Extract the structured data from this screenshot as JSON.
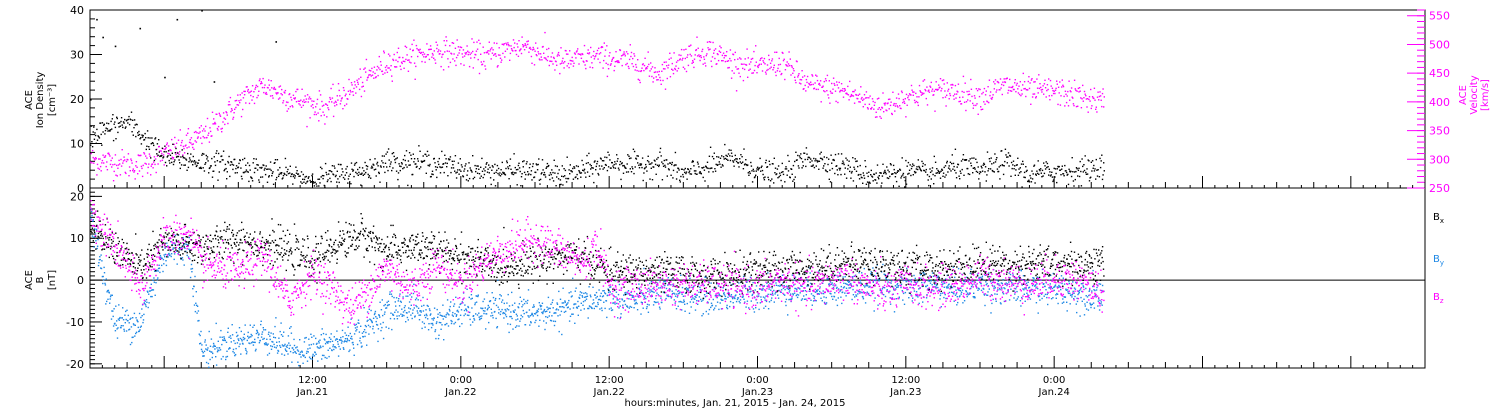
{
  "colors": {
    "black": "#000000",
    "magenta": "#ff00ff",
    "blue": "#1e88e5",
    "axis": "#000000"
  },
  "chart_data": [
    {
      "type": "scatter",
      "panel": "top",
      "ylabel_left": [
        "ACE",
        "Ion Density",
        "[cm⁻³]"
      ],
      "ylabel_right": [
        "ACE",
        "Velocity",
        "[km/s]"
      ],
      "ylim_left": [
        0,
        40
      ],
      "yticks_left": [
        "0",
        "10",
        "20",
        "30",
        "40"
      ],
      "ylim_right": [
        250,
        560
      ],
      "yticks_right": [
        "250",
        "300",
        "350",
        "400",
        "450",
        "500",
        "550"
      ],
      "x_range_hours": [
        -6,
        102
      ],
      "x_data_end_hours": 76,
      "series": [
        {
          "name": "ACE Ion Density",
          "axis": "left",
          "color": "black",
          "knots": [
            [
              -6,
              12
            ],
            [
              -3,
              15
            ],
            [
              0,
              7
            ],
            [
              3,
              6
            ],
            [
              6,
              5
            ],
            [
              10,
              3
            ],
            [
              12,
              2
            ],
            [
              14,
              3
            ],
            [
              16,
              4
            ],
            [
              18,
              6
            ],
            [
              21,
              6
            ],
            [
              25,
              4
            ],
            [
              30,
              4
            ],
            [
              32,
              3
            ],
            [
              34,
              4
            ],
            [
              36,
              6
            ],
            [
              38,
              5
            ],
            [
              40,
              6
            ],
            [
              42,
              3
            ],
            [
              44,
              5
            ],
            [
              46,
              7
            ],
            [
              48,
              4
            ],
            [
              50,
              3
            ],
            [
              52,
              7
            ],
            [
              55,
              5
            ],
            [
              57,
              3
            ],
            [
              60,
              4
            ],
            [
              62,
              3
            ],
            [
              64,
              5
            ],
            [
              66,
              4
            ],
            [
              68,
              6
            ],
            [
              70,
              3
            ],
            [
              72,
              4
            ],
            [
              74,
              4
            ],
            [
              76,
              5
            ]
          ],
          "noise": 1.4,
          "outliers": [
            [
              -5.5,
              38
            ],
            [
              -5,
              34
            ],
            [
              -4,
              32
            ],
            [
              -2,
              36
            ],
            [
              1,
              38
            ],
            [
              3,
              40
            ],
            [
              0,
              25
            ],
            [
              4,
              24
            ],
            [
              9,
              33
            ],
            [
              -6,
              20
            ]
          ]
        },
        {
          "name": "ACE Velocity",
          "axis": "right",
          "color": "magenta",
          "knots": [
            [
              -6,
              300
            ],
            [
              -2,
              290
            ],
            [
              0,
              310
            ],
            [
              3,
              340
            ],
            [
              6,
              400
            ],
            [
              8,
              430
            ],
            [
              10,
              410
            ],
            [
              13,
              390
            ],
            [
              15,
              420
            ],
            [
              18,
              470
            ],
            [
              20,
              480
            ],
            [
              22,
              490
            ],
            [
              26,
              480
            ],
            [
              29,
              500
            ],
            [
              32,
              470
            ],
            [
              35,
              480
            ],
            [
              38,
              470
            ],
            [
              40,
              450
            ],
            [
              42,
              480
            ],
            [
              44,
              490
            ],
            [
              46,
              470
            ],
            [
              48,
              460
            ],
            [
              50,
              470
            ],
            [
              52,
              430
            ],
            [
              55,
              420
            ],
            [
              57,
              400
            ],
            [
              58,
              390
            ],
            [
              60,
              410
            ],
            [
              62,
              420
            ],
            [
              64,
              420
            ],
            [
              66,
              410
            ],
            [
              68,
              430
            ],
            [
              70,
              420
            ],
            [
              72,
              420
            ],
            [
              74,
              410
            ],
            [
              76,
              400
            ]
          ],
          "noise": 12
        }
      ]
    },
    {
      "type": "scatter",
      "panel": "bottom",
      "ylabel_left": [
        "ACE",
        "B",
        "[nT]"
      ],
      "ylim_left": [
        -21,
        22
      ],
      "yticks_left": [
        "-20",
        "-10",
        "0",
        "10",
        "20"
      ],
      "zero_line": true,
      "x_range_hours": [
        -6,
        102
      ],
      "x_data_end_hours": 76,
      "xticks": [
        {
          "hours": 12,
          "time": "12:00",
          "date": "Jan.21"
        },
        {
          "hours": 24,
          "time": "0:00",
          "date": "Jan.22"
        },
        {
          "hours": 36,
          "time": "12:00",
          "date": "Jan.22"
        },
        {
          "hours": 48,
          "time": "0:00",
          "date": "Jan.23"
        },
        {
          "hours": 60,
          "time": "12:00",
          "date": "Jan.23"
        },
        {
          "hours": 72,
          "time": "0:00",
          "date": "Jan.24"
        }
      ],
      "xlabel": "hours:minutes, Jan. 21, 2015 - Jan. 24, 2015",
      "series": [
        {
          "name": "Bx",
          "color": "black",
          "knots": [
            [
              -6,
              12
            ],
            [
              -4,
              8
            ],
            [
              -2,
              3
            ],
            [
              0,
              9
            ],
            [
              3,
              8
            ],
            [
              6,
              10
            ],
            [
              9,
              8
            ],
            [
              12,
              5
            ],
            [
              14,
              9
            ],
            [
              16,
              11
            ],
            [
              18,
              7
            ],
            [
              20,
              8
            ],
            [
              24,
              6
            ],
            [
              27,
              3
            ],
            [
              30,
              5
            ],
            [
              33,
              6
            ],
            [
              35,
              4
            ],
            [
              36,
              2
            ],
            [
              40,
              2
            ],
            [
              44,
              1
            ],
            [
              48,
              2
            ],
            [
              52,
              3
            ],
            [
              55,
              4
            ],
            [
              58,
              4
            ],
            [
              60,
              3
            ],
            [
              63,
              3
            ],
            [
              66,
              4
            ],
            [
              68,
              4
            ],
            [
              72,
              4
            ],
            [
              74,
              4
            ],
            [
              76,
              4
            ]
          ],
          "noise": 2.2
        },
        {
          "name": "By",
          "color": "blue",
          "knots": [
            [
              -6,
              15
            ],
            [
              -5,
              2
            ],
            [
              -4,
              -10
            ],
            [
              -2,
              -10
            ],
            [
              0,
              7
            ],
            [
              2,
              8
            ],
            [
              3,
              -17
            ],
            [
              5,
              -15
            ],
            [
              8,
              -13
            ],
            [
              11,
              -17
            ],
            [
              14,
              -15
            ],
            [
              16,
              -12
            ],
            [
              18,
              -7
            ],
            [
              20,
              -6
            ],
            [
              22,
              -10
            ],
            [
              24,
              -7
            ],
            [
              27,
              -7
            ],
            [
              30,
              -8
            ],
            [
              32,
              -7
            ],
            [
              34,
              -5
            ],
            [
              36,
              -4
            ],
            [
              38,
              -5
            ],
            [
              40,
              -3
            ],
            [
              44,
              -4
            ],
            [
              48,
              -3
            ],
            [
              50,
              -2
            ],
            [
              54,
              -2
            ],
            [
              58,
              -1
            ],
            [
              60,
              -2
            ],
            [
              62,
              -1
            ],
            [
              64,
              -2
            ],
            [
              66,
              -1
            ],
            [
              68,
              -2
            ],
            [
              70,
              -2
            ],
            [
              72,
              -2
            ],
            [
              74,
              -3
            ],
            [
              76,
              -3
            ]
          ],
          "noise": 2.0
        },
        {
          "name": "Bz",
          "color": "magenta",
          "knots": [
            [
              -6,
              16
            ],
            [
              -4,
              8
            ],
            [
              -2,
              -2
            ],
            [
              0,
              10
            ],
            [
              2,
              11
            ],
            [
              3,
              4
            ],
            [
              6,
              2
            ],
            [
              8,
              6
            ],
            [
              10,
              -5
            ],
            [
              12,
              2
            ],
            [
              14,
              -3
            ],
            [
              15,
              -7
            ],
            [
              18,
              3
            ],
            [
              20,
              -2
            ],
            [
              22,
              4
            ],
            [
              24,
              -1
            ],
            [
              26,
              5
            ],
            [
              28,
              8
            ],
            [
              30,
              10
            ],
            [
              32,
              7
            ],
            [
              34,
              4
            ],
            [
              35,
              9
            ],
            [
              36,
              -2
            ],
            [
              40,
              -1
            ],
            [
              44,
              -1
            ],
            [
              48,
              -2
            ],
            [
              50,
              0
            ],
            [
              52,
              -2
            ],
            [
              55,
              1
            ],
            [
              58,
              -3
            ],
            [
              60,
              -1
            ],
            [
              62,
              -2
            ],
            [
              64,
              -1
            ],
            [
              66,
              1
            ],
            [
              68,
              0
            ],
            [
              70,
              -1
            ],
            [
              72,
              1
            ],
            [
              74,
              0
            ],
            [
              76,
              -3
            ]
          ],
          "noise": 2.4
        }
      ]
    }
  ],
  "legend": [
    {
      "label": "B",
      "sub": "x",
      "color": "black"
    },
    {
      "label": "B",
      "sub": "y",
      "color": "blue"
    },
    {
      "label": "B",
      "sub": "z",
      "color": "magenta"
    }
  ]
}
